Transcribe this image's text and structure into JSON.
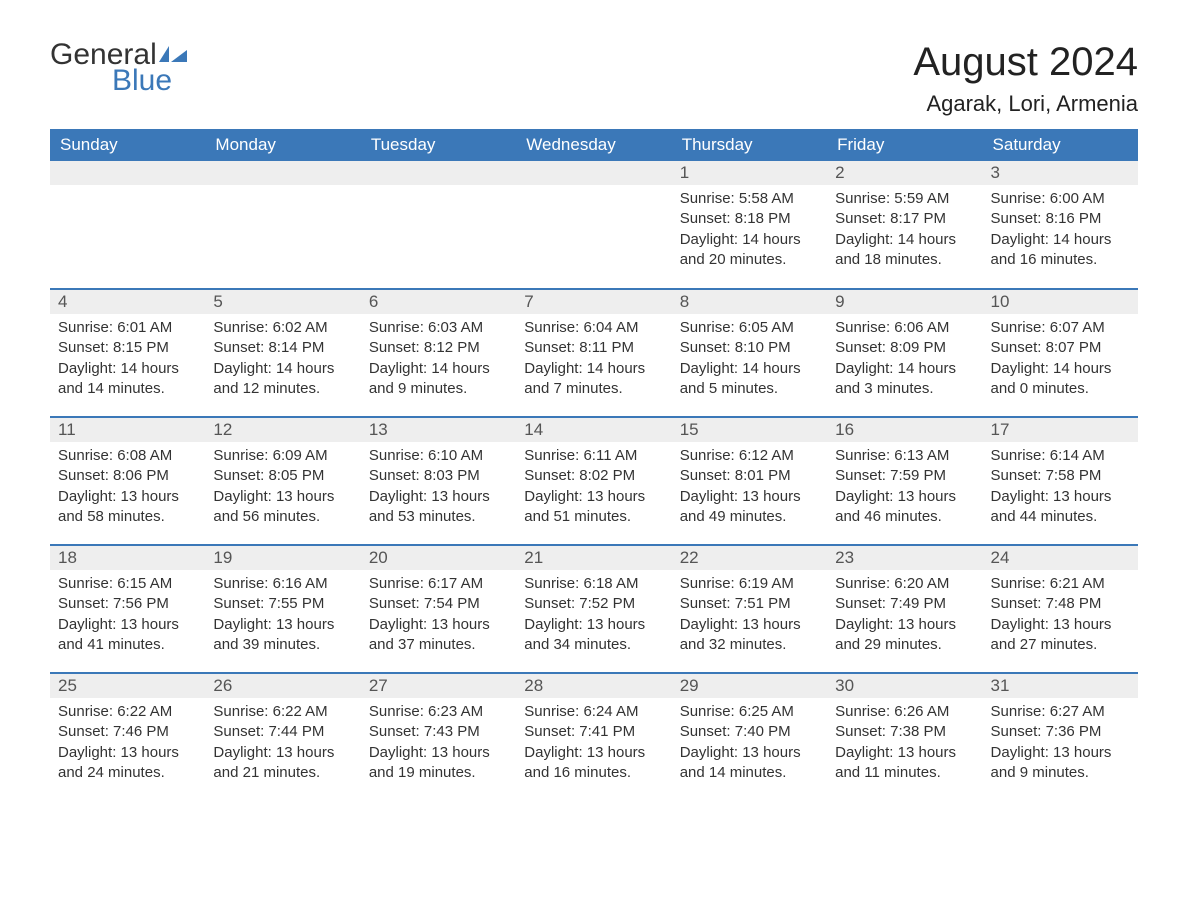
{
  "brand": {
    "word1": "General",
    "word2": "Blue",
    "accent_color": "#3b78b8"
  },
  "title": "August 2024",
  "location": "Agarak, Lori, Armenia",
  "colors": {
    "header_bg": "#3b78b8",
    "header_text": "#ffffff",
    "daynum_bg": "#eeeeee",
    "row_border": "#3b78b8",
    "body_text": "#333333",
    "page_bg": "#ffffff"
  },
  "fonts": {
    "title_size_pt": 30,
    "location_size_pt": 16,
    "header_size_pt": 13,
    "cell_size_pt": 11
  },
  "day_headers": [
    "Sunday",
    "Monday",
    "Tuesday",
    "Wednesday",
    "Thursday",
    "Friday",
    "Saturday"
  ],
  "weeks": [
    [
      null,
      null,
      null,
      null,
      {
        "n": "1",
        "sunrise": "Sunrise: 5:58 AM",
        "sunset": "Sunset: 8:18 PM",
        "daylight": "Daylight: 14 hours and 20 minutes."
      },
      {
        "n": "2",
        "sunrise": "Sunrise: 5:59 AM",
        "sunset": "Sunset: 8:17 PM",
        "daylight": "Daylight: 14 hours and 18 minutes."
      },
      {
        "n": "3",
        "sunrise": "Sunrise: 6:00 AM",
        "sunset": "Sunset: 8:16 PM",
        "daylight": "Daylight: 14 hours and 16 minutes."
      }
    ],
    [
      {
        "n": "4",
        "sunrise": "Sunrise: 6:01 AM",
        "sunset": "Sunset: 8:15 PM",
        "daylight": "Daylight: 14 hours and 14 minutes."
      },
      {
        "n": "5",
        "sunrise": "Sunrise: 6:02 AM",
        "sunset": "Sunset: 8:14 PM",
        "daylight": "Daylight: 14 hours and 12 minutes."
      },
      {
        "n": "6",
        "sunrise": "Sunrise: 6:03 AM",
        "sunset": "Sunset: 8:12 PM",
        "daylight": "Daylight: 14 hours and 9 minutes."
      },
      {
        "n": "7",
        "sunrise": "Sunrise: 6:04 AM",
        "sunset": "Sunset: 8:11 PM",
        "daylight": "Daylight: 14 hours and 7 minutes."
      },
      {
        "n": "8",
        "sunrise": "Sunrise: 6:05 AM",
        "sunset": "Sunset: 8:10 PM",
        "daylight": "Daylight: 14 hours and 5 minutes."
      },
      {
        "n": "9",
        "sunrise": "Sunrise: 6:06 AM",
        "sunset": "Sunset: 8:09 PM",
        "daylight": "Daylight: 14 hours and 3 minutes."
      },
      {
        "n": "10",
        "sunrise": "Sunrise: 6:07 AM",
        "sunset": "Sunset: 8:07 PM",
        "daylight": "Daylight: 14 hours and 0 minutes."
      }
    ],
    [
      {
        "n": "11",
        "sunrise": "Sunrise: 6:08 AM",
        "sunset": "Sunset: 8:06 PM",
        "daylight": "Daylight: 13 hours and 58 minutes."
      },
      {
        "n": "12",
        "sunrise": "Sunrise: 6:09 AM",
        "sunset": "Sunset: 8:05 PM",
        "daylight": "Daylight: 13 hours and 56 minutes."
      },
      {
        "n": "13",
        "sunrise": "Sunrise: 6:10 AM",
        "sunset": "Sunset: 8:03 PM",
        "daylight": "Daylight: 13 hours and 53 minutes."
      },
      {
        "n": "14",
        "sunrise": "Sunrise: 6:11 AM",
        "sunset": "Sunset: 8:02 PM",
        "daylight": "Daylight: 13 hours and 51 minutes."
      },
      {
        "n": "15",
        "sunrise": "Sunrise: 6:12 AM",
        "sunset": "Sunset: 8:01 PM",
        "daylight": "Daylight: 13 hours and 49 minutes."
      },
      {
        "n": "16",
        "sunrise": "Sunrise: 6:13 AM",
        "sunset": "Sunset: 7:59 PM",
        "daylight": "Daylight: 13 hours and 46 minutes."
      },
      {
        "n": "17",
        "sunrise": "Sunrise: 6:14 AM",
        "sunset": "Sunset: 7:58 PM",
        "daylight": "Daylight: 13 hours and 44 minutes."
      }
    ],
    [
      {
        "n": "18",
        "sunrise": "Sunrise: 6:15 AM",
        "sunset": "Sunset: 7:56 PM",
        "daylight": "Daylight: 13 hours and 41 minutes."
      },
      {
        "n": "19",
        "sunrise": "Sunrise: 6:16 AM",
        "sunset": "Sunset: 7:55 PM",
        "daylight": "Daylight: 13 hours and 39 minutes."
      },
      {
        "n": "20",
        "sunrise": "Sunrise: 6:17 AM",
        "sunset": "Sunset: 7:54 PM",
        "daylight": "Daylight: 13 hours and 37 minutes."
      },
      {
        "n": "21",
        "sunrise": "Sunrise: 6:18 AM",
        "sunset": "Sunset: 7:52 PM",
        "daylight": "Daylight: 13 hours and 34 minutes."
      },
      {
        "n": "22",
        "sunrise": "Sunrise: 6:19 AM",
        "sunset": "Sunset: 7:51 PM",
        "daylight": "Daylight: 13 hours and 32 minutes."
      },
      {
        "n": "23",
        "sunrise": "Sunrise: 6:20 AM",
        "sunset": "Sunset: 7:49 PM",
        "daylight": "Daylight: 13 hours and 29 minutes."
      },
      {
        "n": "24",
        "sunrise": "Sunrise: 6:21 AM",
        "sunset": "Sunset: 7:48 PM",
        "daylight": "Daylight: 13 hours and 27 minutes."
      }
    ],
    [
      {
        "n": "25",
        "sunrise": "Sunrise: 6:22 AM",
        "sunset": "Sunset: 7:46 PM",
        "daylight": "Daylight: 13 hours and 24 minutes."
      },
      {
        "n": "26",
        "sunrise": "Sunrise: 6:22 AM",
        "sunset": "Sunset: 7:44 PM",
        "daylight": "Daylight: 13 hours and 21 minutes."
      },
      {
        "n": "27",
        "sunrise": "Sunrise: 6:23 AM",
        "sunset": "Sunset: 7:43 PM",
        "daylight": "Daylight: 13 hours and 19 minutes."
      },
      {
        "n": "28",
        "sunrise": "Sunrise: 6:24 AM",
        "sunset": "Sunset: 7:41 PM",
        "daylight": "Daylight: 13 hours and 16 minutes."
      },
      {
        "n": "29",
        "sunrise": "Sunrise: 6:25 AM",
        "sunset": "Sunset: 7:40 PM",
        "daylight": "Daylight: 13 hours and 14 minutes."
      },
      {
        "n": "30",
        "sunrise": "Sunrise: 6:26 AM",
        "sunset": "Sunset: 7:38 PM",
        "daylight": "Daylight: 13 hours and 11 minutes."
      },
      {
        "n": "31",
        "sunrise": "Sunrise: 6:27 AM",
        "sunset": "Sunset: 7:36 PM",
        "daylight": "Daylight: 13 hours and 9 minutes."
      }
    ]
  ]
}
